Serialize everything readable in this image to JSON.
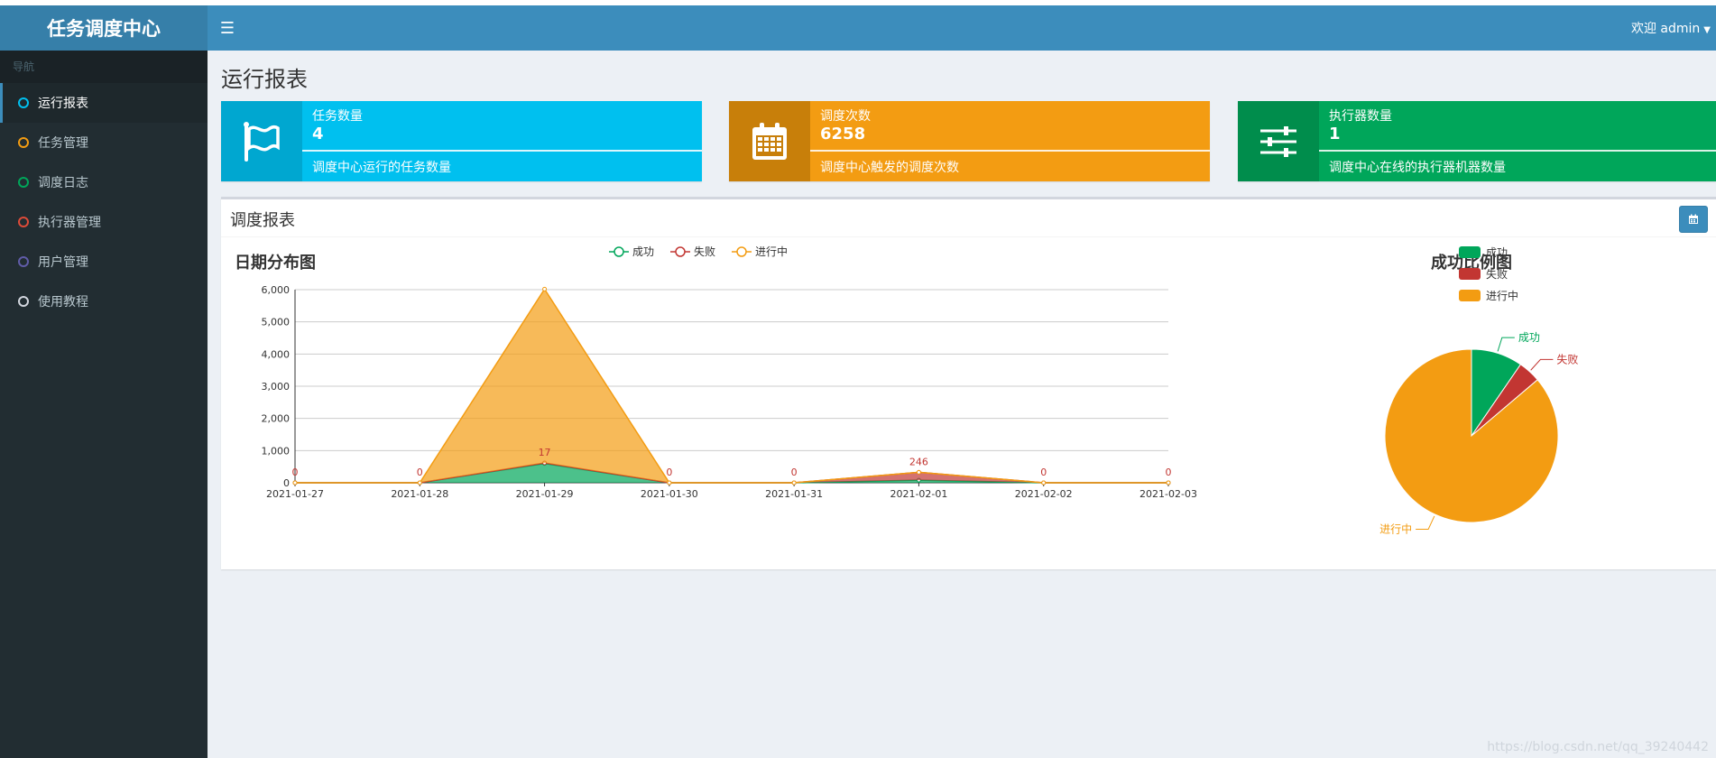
{
  "app": {
    "title": "任务调度中心"
  },
  "topbar": {
    "menu_icon": "hamburger-icon",
    "user_label": "欢迎 admin"
  },
  "sidebar": {
    "header": "导航",
    "items": [
      {
        "label": "运行报表",
        "color": "#00c0ef",
        "active": true
      },
      {
        "label": "任务管理",
        "color": "#f39c12",
        "active": false
      },
      {
        "label": "调度日志",
        "color": "#00a65a",
        "active": false
      },
      {
        "label": "执行器管理",
        "color": "#dd4b39",
        "active": false
      },
      {
        "label": "用户管理",
        "color": "#605ca8",
        "active": false
      },
      {
        "label": "使用教程",
        "color": "#d2d6de",
        "active": false
      }
    ]
  },
  "page": {
    "title": "运行报表"
  },
  "info_boxes": [
    {
      "label": "任务数量",
      "value": "4",
      "desc": "调度中心运行的任务数量",
      "icon": "flag-icon",
      "color": "#00c0ef",
      "icon_bg": "#00a7d0"
    },
    {
      "label": "调度次数",
      "value": "6258",
      "desc": "调度中心触发的调度次数",
      "icon": "calendar-icon",
      "color": "#f39c12",
      "icon_bg": "#c87f0a"
    },
    {
      "label": "执行器数量",
      "value": "1",
      "desc": "调度中心在线的执行器机器数量",
      "icon": "sliders-icon",
      "color": "#00a65a",
      "icon_bg": "#008d4c"
    }
  ],
  "report": {
    "title": "调度报表",
    "button_icon": "calendar-icon"
  },
  "chart_data": [
    {
      "type": "area",
      "title": "日期分布图",
      "x": [
        "2021-01-27",
        "2021-01-28",
        "2021-01-29",
        "2021-01-30",
        "2021-01-31",
        "2021-02-01",
        "2021-02-02",
        "2021-02-03"
      ],
      "ylim": [
        0,
        6000
      ],
      "yticks": [
        "0",
        "1,000",
        "2,000",
        "3,000",
        "4,000",
        "5,000",
        "6,000"
      ],
      "stacked": true,
      "grid": true,
      "legend": "top",
      "series": [
        {
          "name": "成功",
          "color": "#00a65a",
          "values": [
            0,
            0,
            600,
            0,
            0,
            80,
            0,
            0
          ]
        },
        {
          "name": "失败",
          "color": "#c23632",
          "values": [
            0,
            0,
            17,
            0,
            0,
            246,
            0,
            0
          ]
        },
        {
          "name": "进行中",
          "color": "#f39c12",
          "values": [
            0,
            0,
            5400,
            0,
            0,
            0,
            0,
            0
          ]
        }
      ],
      "data_labels": [
        "0",
        "0",
        "17",
        "0",
        "0",
        "246",
        "0",
        "0"
      ]
    },
    {
      "type": "pie",
      "title": "成功比例图",
      "legend": "left",
      "categories": [
        "成功",
        "失败",
        "进行中"
      ],
      "colors": [
        "#00a65a",
        "#c23632",
        "#f39c12"
      ],
      "values": [
        600,
        263,
        5395
      ]
    }
  ],
  "watermark": "https://blog.csdn.net/qq_39240442"
}
